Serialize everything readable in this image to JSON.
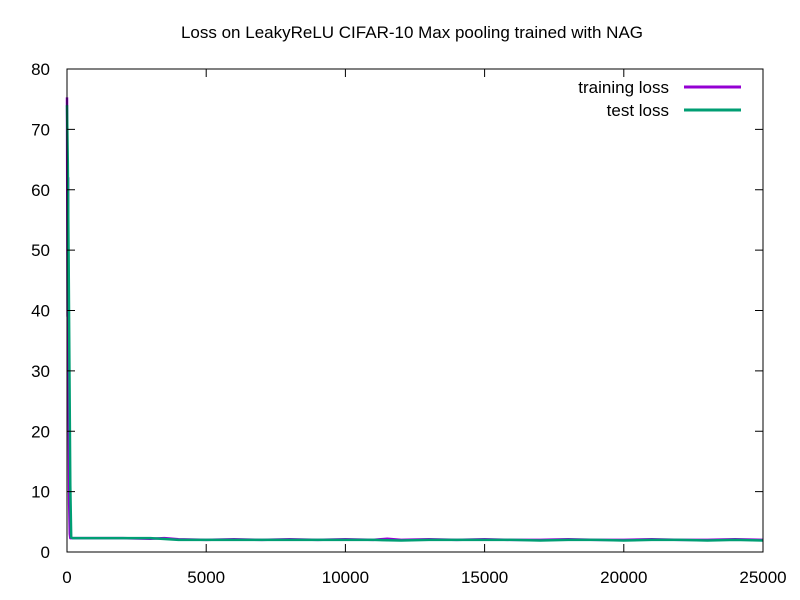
{
  "chart_data": {
    "type": "line",
    "title": "Loss on LeakyReLU CIFAR-10 Max pooling trained with NAG",
    "xlabel": "",
    "ylabel": "",
    "xlim": [
      0,
      25000
    ],
    "ylim": [
      0,
      80
    ],
    "x_ticks": [
      0,
      5000,
      10000,
      15000,
      20000,
      25000
    ],
    "y_ticks": [
      0,
      10,
      20,
      30,
      40,
      50,
      60,
      70,
      80
    ],
    "grid": false,
    "legend_position": "top-right",
    "series": [
      {
        "name": "training loss",
        "color": "#9400d3",
        "x": [
          0,
          20,
          40,
          60,
          80,
          100,
          120,
          150,
          200,
          300,
          500,
          1000,
          2000,
          3000,
          3500,
          4000,
          5000,
          6000,
          7000,
          8000,
          9000,
          10000,
          11000,
          11500,
          12000,
          13000,
          14000,
          15000,
          16000,
          17000,
          18000,
          19000,
          20000,
          21000,
          22000,
          23000,
          24000,
          25000
        ],
        "y": [
          75.3,
          39.0,
          62.0,
          24.0,
          8.0,
          3.0,
          2.3,
          2.3,
          2.3,
          2.3,
          2.3,
          2.3,
          2.3,
          2.2,
          2.3,
          2.1,
          2.0,
          2.1,
          2.0,
          2.1,
          2.0,
          2.1,
          2.0,
          2.2,
          2.0,
          2.1,
          2.0,
          2.1,
          2.0,
          2.0,
          2.1,
          2.0,
          2.0,
          2.1,
          2.0,
          2.0,
          2.1,
          2.0
        ]
      },
      {
        "name": "test loss",
        "color": "#009e73",
        "x": [
          0,
          30,
          60,
          90,
          120,
          150,
          200,
          300,
          500,
          1000,
          2000,
          3000,
          4000,
          5000,
          6000,
          7000,
          8000,
          9000,
          10000,
          11000,
          12000,
          13000,
          14000,
          15000,
          16000,
          17000,
          18000,
          19000,
          20000,
          21000,
          22000,
          23000,
          24000,
          25000
        ],
        "y": [
          74.0,
          64.5,
          47.0,
          29.0,
          11.0,
          2.4,
          2.3,
          2.3,
          2.3,
          2.3,
          2.3,
          2.3,
          2.0,
          2.0,
          2.0,
          2.0,
          2.0,
          2.0,
          2.0,
          2.0,
          1.9,
          2.0,
          2.0,
          2.0,
          2.0,
          1.9,
          2.0,
          2.0,
          1.9,
          2.0,
          2.0,
          1.9,
          2.0,
          1.9
        ]
      }
    ]
  }
}
